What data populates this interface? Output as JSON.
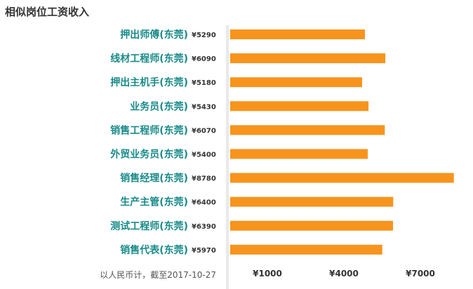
{
  "chart_data": {
    "type": "bar",
    "orientation": "horizontal",
    "title": "相似岗位工资收入",
    "categories": [
      "押出师傅(东莞)",
      "线材工程师(东莞)",
      "押出主机手(东莞)",
      "业务员(东莞)",
      "销售工程师(东莞)",
      "外贸业务员(东莞)",
      "销售经理(东莞)",
      "生产主管(东莞)",
      "测试工程师(东莞)",
      "销售代表(东莞)"
    ],
    "values": [
      5290,
      6090,
      5180,
      5430,
      6070,
      5400,
      8780,
      6400,
      6390,
      5970
    ],
    "value_labels": [
      "¥5290",
      "¥6090",
      "¥5180",
      "¥5430",
      "¥6070",
      "¥5400",
      "¥8780",
      "¥6400",
      "¥6390",
      "¥5970"
    ],
    "xticks": [
      1000,
      4000,
      7000
    ],
    "xtick_labels": [
      "¥1000",
      "¥4000",
      "¥7000"
    ],
    "xlim": [
      0,
      9000
    ],
    "bar_color": "#f7941d",
    "category_color": "#1a8a8a",
    "value_label_color": "#333333",
    "grid": false,
    "footnote": "以人民币计，截至2017-10-27"
  }
}
